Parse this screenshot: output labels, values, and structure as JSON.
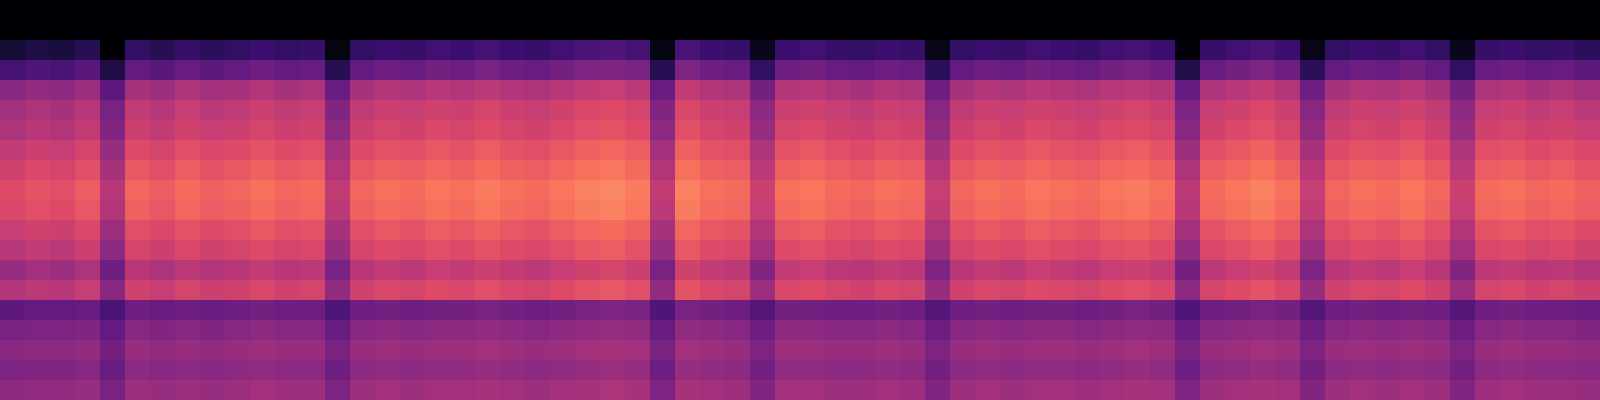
{
  "chart_data": {
    "type": "heatmap",
    "tick_labels": false,
    "zlim": [
      -80,
      0
    ],
    "cells": [
      [
        -48,
        -47,
        -47,
        -46,
        -52,
        -45,
        -46,
        -45,
        -46,
        -45,
        -44,
        -45,
        -45,
        -51,
        -45,
        -44,
        -45,
        -44,
        -44,
        -43,
        -44,
        -45,
        -44,
        -43,
        -42,
        -43,
        -51,
        -43,
        -44,
        -45,
        -50,
        -44,
        -44,
        -45,
        -45,
        -44,
        -45,
        -50,
        -45,
        -44,
        -45,
        -44,
        -44,
        -45,
        -44,
        -43,
        -44,
        -51,
        -45,
        -44,
        -43,
        -44,
        -50,
        -45,
        -44,
        -45,
        -44,
        -45,
        -50,
        -45,
        -44,
        -45,
        -45,
        -46
      ],
      [
        -51,
        -50,
        -50,
        -49,
        -55,
        -48,
        -49,
        -48,
        -49,
        -48,
        -47,
        -48,
        -48,
        -54,
        -48,
        -47,
        -48,
        -47,
        -47,
        -46,
        -47,
        -48,
        -47,
        -46,
        -45,
        -46,
        -54,
        -46,
        -47,
        -48,
        -53,
        -47,
        -47,
        -48,
        -48,
        -47,
        -48,
        -53,
        -48,
        -47,
        -48,
        -47,
        -47,
        -48,
        -47,
        -46,
        -47,
        -54,
        -48,
        -47,
        -46,
        -47,
        -53,
        -48,
        -47,
        -48,
        -47,
        -48,
        -53,
        -48,
        -47,
        -48,
        -48,
        -49
      ],
      [
        -49,
        -48,
        -48,
        -47,
        -53,
        -46,
        -47,
        -46,
        -47,
        -46,
        -45,
        -46,
        -46,
        -52,
        -46,
        -45,
        -46,
        -45,
        -45,
        -44,
        -45,
        -46,
        -45,
        -44,
        -43,
        -44,
        -52,
        -44,
        -45,
        -46,
        -51,
        -45,
        -45,
        -46,
        -46,
        -45,
        -46,
        -51,
        -46,
        -45,
        -46,
        -45,
        -45,
        -46,
        -45,
        -44,
        -45,
        -52,
        -46,
        -45,
        -44,
        -45,
        -51,
        -46,
        -45,
        -46,
        -45,
        -46,
        -51,
        -46,
        -45,
        -46,
        -46,
        -47
      ],
      [
        -52,
        -51,
        -51,
        -50,
        -56,
        -49,
        -50,
        -49,
        -50,
        -49,
        -48,
        -49,
        -49,
        -55,
        -49,
        -48,
        -49,
        -48,
        -48,
        -47,
        -48,
        -49,
        -48,
        -47,
        -46,
        -47,
        -55,
        -47,
        -48,
        -49,
        -54,
        -48,
        -48,
        -49,
        -49,
        -48,
        -49,
        -54,
        -49,
        -48,
        -49,
        -48,
        -48,
        -49,
        -48,
        -47,
        -48,
        -55,
        -49,
        -48,
        -47,
        -48,
        -54,
        -49,
        -48,
        -49,
        -48,
        -49,
        -54,
        -49,
        -48,
        -49,
        -49,
        -50
      ],
      [
        -57,
        -56,
        -56,
        -55,
        -61,
        -54,
        -55,
        -54,
        -55,
        -54,
        -53,
        -54,
        -54,
        -60,
        -54,
        -53,
        -54,
        -53,
        -53,
        -52,
        -53,
        -54,
        -53,
        -52,
        -51,
        -52,
        -60,
        -52,
        -53,
        -54,
        -59,
        -53,
        -53,
        -54,
        -54,
        -53,
        -54,
        -59,
        -54,
        -53,
        -54,
        -53,
        -53,
        -54,
        -53,
        -52,
        -53,
        -60,
        -54,
        -53,
        -52,
        -53,
        -59,
        -54,
        -53,
        -54,
        -53,
        -54,
        -59,
        -54,
        -53,
        -54,
        -54,
        -55
      ],
      [
        -41,
        -39,
        -40,
        -37,
        -49,
        -35,
        -37,
        -34,
        -36,
        -35,
        -33,
        -35,
        -34,
        -47,
        -35,
        -33,
        -34,
        -32,
        -33,
        -31,
        -33,
        -34,
        -32,
        -30,
        -29,
        -31,
        -47,
        -30,
        -33,
        -34,
        -45,
        -33,
        -32,
        -34,
        -35,
        -33,
        -34,
        -46,
        -35,
        -33,
        -34,
        -32,
        -33,
        -34,
        -32,
        -31,
        -33,
        -48,
        -34,
        -32,
        -30,
        -33,
        -46,
        -35,
        -33,
        -34,
        -32,
        -35,
        -45,
        -34,
        -33,
        -35,
        -34,
        -36
      ],
      [
        -46,
        -44,
        -45,
        -42,
        -54,
        -40,
        -42,
        -39,
        -41,
        -40,
        -38,
        -40,
        -39,
        -52,
        -40,
        -38,
        -39,
        -37,
        -38,
        -36,
        -38,
        -39,
        -37,
        -35,
        -34,
        -36,
        -52,
        -35,
        -38,
        -39,
        -50,
        -38,
        -37,
        -39,
        -40,
        -38,
        -39,
        -51,
        -40,
        -38,
        -39,
        -37,
        -38,
        -39,
        -37,
        -36,
        -38,
        -53,
        -39,
        -37,
        -35,
        -38,
        -51,
        -40,
        -38,
        -39,
        -37,
        -40,
        -50,
        -39,
        -38,
        -40,
        -39,
        -41
      ],
      [
        -40,
        -38,
        -39,
        -36,
        -48,
        -34,
        -36,
        -33,
        -35,
        -34,
        -32,
        -34,
        -33,
        -46,
        -34,
        -32,
        -33,
        -31,
        -32,
        -30,
        -32,
        -33,
        -31,
        -29,
        -28,
        -30,
        -46,
        -29,
        -32,
        -33,
        -44,
        -32,
        -31,
        -33,
        -34,
        -32,
        -33,
        -45,
        -34,
        -32,
        -33,
        -31,
        -32,
        -33,
        -31,
        -30,
        -32,
        -47,
        -33,
        -31,
        -29,
        -32,
        -45,
        -34,
        -32,
        -33,
        -31,
        -34,
        -44,
        -33,
        -32,
        -34,
        -33,
        -35
      ],
      [
        -37,
        -35,
        -36,
        -33,
        -45,
        -31,
        -33,
        -30,
        -32,
        -31,
        -29,
        -31,
        -30,
        -43,
        -31,
        -29,
        -30,
        -28,
        -29,
        -27,
        -29,
        -30,
        -28,
        -26,
        -25,
        -27,
        -43,
        -26,
        -29,
        -30,
        -41,
        -29,
        -28,
        -30,
        -31,
        -29,
        -30,
        -42,
        -31,
        -29,
        -30,
        -28,
        -29,
        -30,
        -28,
        -27,
        -29,
        -44,
        -30,
        -28,
        -26,
        -29,
        -42,
        -31,
        -29,
        -30,
        -28,
        -31,
        -41,
        -30,
        -29,
        -31,
        -30,
        -32
      ],
      [
        -33,
        -31,
        -32,
        -29,
        -41,
        -27,
        -29,
        -26,
        -28,
        -27,
        -25,
        -27,
        -26,
        -39,
        -27,
        -25,
        -26,
        -24,
        -25,
        -23,
        -25,
        -26,
        -24,
        -22,
        -21,
        -23,
        -39,
        -22,
        -25,
        -26,
        -37,
        -25,
        -24,
        -26,
        -27,
        -25,
        -26,
        -38,
        -27,
        -25,
        -26,
        -24,
        -25,
        -26,
        -24,
        -23,
        -25,
        -40,
        -26,
        -24,
        -22,
        -25,
        -38,
        -27,
        -25,
        -26,
        -24,
        -27,
        -37,
        -26,
        -25,
        -27,
        -26,
        -28
      ],
      [
        -32,
        -30,
        -31,
        -28,
        -40,
        -26,
        -28,
        -25,
        -27,
        -26,
        -24,
        -26,
        -25,
        -38,
        -26,
        -24,
        -25,
        -23,
        -24,
        -22,
        -24,
        -25,
        -23,
        -21,
        -20,
        -22,
        -38,
        -21,
        -24,
        -25,
        -36,
        -24,
        -23,
        -25,
        -26,
        -24,
        -25,
        -37,
        -26,
        -24,
        -25,
        -23,
        -24,
        -25,
        -23,
        -22,
        -24,
        -39,
        -25,
        -23,
        -21,
        -24,
        -37,
        -26,
        -24,
        -25,
        -23,
        -26,
        -36,
        -25,
        -24,
        -26,
        -25,
        -27
      ],
      [
        -35,
        -33,
        -34,
        -31,
        -43,
        -29,
        -31,
        -28,
        -30,
        -29,
        -27,
        -29,
        -28,
        -41,
        -29,
        -27,
        -28,
        -26,
        -27,
        -25,
        -27,
        -28,
        -26,
        -24,
        -23,
        -25,
        -41,
        -24,
        -27,
        -28,
        -39,
        -27,
        -26,
        -28,
        -29,
        -27,
        -28,
        -40,
        -29,
        -27,
        -28,
        -26,
        -27,
        -28,
        -26,
        -25,
        -27,
        -42,
        -28,
        -26,
        -24,
        -27,
        -40,
        -29,
        -27,
        -28,
        -26,
        -29,
        -39,
        -28,
        -27,
        -29,
        -28,
        -30
      ],
      [
        -38,
        -36,
        -37,
        -34,
        -46,
        -32,
        -34,
        -31,
        -33,
        -32,
        -30,
        -32,
        -31,
        -44,
        -32,
        -30,
        -31,
        -29,
        -30,
        -28,
        -30,
        -31,
        -29,
        -27,
        -26,
        -28,
        -44,
        -27,
        -30,
        -31,
        -42,
        -30,
        -29,
        -31,
        -32,
        -30,
        -31,
        -43,
        -32,
        -30,
        -31,
        -29,
        -30,
        -31,
        -29,
        -28,
        -30,
        -45,
        -31,
        -29,
        -27,
        -30,
        -43,
        -32,
        -30,
        -31,
        -29,
        -32,
        -42,
        -31,
        -30,
        -32,
        -31,
        -33
      ],
      [
        -42,
        -40,
        -41,
        -38,
        -50,
        -36,
        -38,
        -35,
        -37,
        -36,
        -34,
        -36,
        -35,
        -48,
        -36,
        -34,
        -35,
        -33,
        -34,
        -32,
        -34,
        -35,
        -33,
        -31,
        -30,
        -32,
        -48,
        -31,
        -34,
        -35,
        -46,
        -34,
        -33,
        -35,
        -36,
        -34,
        -35,
        -47,
        -36,
        -34,
        -35,
        -33,
        -34,
        -35,
        -33,
        -32,
        -34,
        -49,
        -35,
        -33,
        -31,
        -34,
        -47,
        -36,
        -34,
        -35,
        -33,
        -36,
        -46,
        -35,
        -34,
        -36,
        -35,
        -37
      ],
      [
        -44,
        -42,
        -43,
        -40,
        -52,
        -38,
        -40,
        -37,
        -39,
        -38,
        -36,
        -38,
        -37,
        -50,
        -38,
        -36,
        -37,
        -35,
        -36,
        -34,
        -36,
        -37,
        -35,
        -33,
        -32,
        -34,
        -50,
        -33,
        -36,
        -37,
        -48,
        -36,
        -35,
        -37,
        -38,
        -36,
        -37,
        -49,
        -38,
        -36,
        -37,
        -35,
        -36,
        -37,
        -35,
        -34,
        -36,
        -51,
        -37,
        -35,
        -33,
        -36,
        -49,
        -38,
        -36,
        -37,
        -35,
        -38,
        -48,
        -37,
        -36,
        -38,
        -37,
        -39
      ],
      [
        -49,
        -47,
        -48,
        -45,
        -57,
        -43,
        -45,
        -42,
        -44,
        -43,
        -41,
        -43,
        -42,
        -55,
        -43,
        -41,
        -42,
        -40,
        -41,
        -39,
        -41,
        -42,
        -40,
        -38,
        -37,
        -39,
        -55,
        -38,
        -41,
        -42,
        -53,
        -41,
        -40,
        -42,
        -43,
        -41,
        -42,
        -54,
        -43,
        -41,
        -42,
        -40,
        -41,
        -42,
        -40,
        -39,
        -41,
        -56,
        -42,
        -40,
        -38,
        -41,
        -54,
        -43,
        -41,
        -42,
        -40,
        -43,
        -53,
        -42,
        -41,
        -43,
        -42,
        -44
      ],
      [
        -62,
        -60,
        -61,
        -58,
        -70,
        -56,
        -58,
        -55,
        -57,
        -56,
        -54,
        -56,
        -55,
        -68,
        -56,
        -54,
        -55,
        -53,
        -54,
        -52,
        -54,
        -55,
        -53,
        -51,
        -50,
        -52,
        -68,
        -51,
        -54,
        -55,
        -66,
        -54,
        -53,
        -55,
        -56,
        -54,
        -55,
        -67,
        -56,
        -54,
        -55,
        -53,
        -54,
        -55,
        -53,
        -52,
        -54,
        -69,
        -55,
        -53,
        -51,
        -54,
        -67,
        -56,
        -54,
        -55,
        -53,
        -56,
        -66,
        -55,
        -54,
        -56,
        -55,
        -57
      ],
      [
        -72,
        -70,
        -71,
        -68,
        -80,
        -66,
        -68,
        -65,
        -67,
        -66,
        -64,
        -66,
        -65,
        -78,
        -66,
        -64,
        -65,
        -63,
        -64,
        -62,
        -64,
        -65,
        -63,
        -61,
        -60,
        -62,
        -78,
        -61,
        -64,
        -65,
        -76,
        -64,
        -63,
        -65,
        -66,
        -64,
        -65,
        -77,
        -66,
        -64,
        -65,
        -63,
        -64,
        -65,
        -63,
        -62,
        -64,
        -79,
        -65,
        -63,
        -61,
        -64,
        -77,
        -66,
        -64,
        -65,
        -63,
        -66,
        -76,
        -65,
        -64,
        -66,
        -65,
        -67
      ],
      [
        -80,
        -80,
        -80,
        -80,
        -80,
        -80,
        -80,
        -80,
        -80,
        -80,
        -80,
        -80,
        -80,
        -80,
        -80,
        -80,
        -80,
        -80,
        -80,
        -80,
        -80,
        -80,
        -80,
        -80,
        -80,
        -80,
        -80,
        -80,
        -80,
        -80,
        -80,
        -80,
        -80,
        -80,
        -80,
        -80,
        -80,
        -80,
        -80,
        -80,
        -80,
        -80,
        -80,
        -80,
        -80,
        -80,
        -80,
        -80,
        -80,
        -80,
        -80,
        -80,
        -80,
        -80,
        -80,
        -80,
        -80,
        -80,
        -80,
        -80,
        -80,
        -80,
        -80,
        -80
      ],
      [
        -80,
        -80,
        -80,
        -80,
        -80,
        -80,
        -80,
        -80,
        -80,
        -80,
        -80,
        -80,
        -80,
        -80,
        -80,
        -80,
        -80,
        -80,
        -80,
        -80,
        -80,
        -80,
        -80,
        -80,
        -80,
        -80,
        -80,
        -80,
        -80,
        -80,
        -80,
        -80,
        -80,
        -80,
        -80,
        -80,
        -80,
        -80,
        -80,
        -80,
        -80,
        -80,
        -80,
        -80,
        -80,
        -80,
        -80,
        -80,
        -80,
        -80,
        -80,
        -80,
        -80,
        -80,
        -80,
        -80,
        -80,
        -80,
        -80,
        -80,
        -80,
        -80,
        -80,
        -80
      ]
    ]
  }
}
